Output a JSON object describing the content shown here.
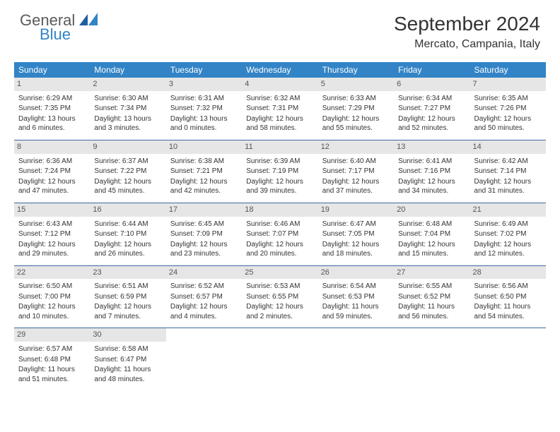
{
  "brand": {
    "part1": "General",
    "part2": "Blue"
  },
  "title": "September 2024",
  "location": "Mercato, Campania, Italy",
  "colors": {
    "header_bg": "#3284c6",
    "header_text": "#ffffff",
    "daynum_bg": "#e6e6e6",
    "daynum_text": "#555555",
    "cell_text": "#333333",
    "row_divider": "#3a6a9a",
    "background": "#ffffff"
  },
  "typography": {
    "title_fontsize": 28,
    "location_fontsize": 16,
    "header_fontsize": 12,
    "daynum_fontsize": 11,
    "cell_fontsize": 10
  },
  "weekdays": [
    "Sunday",
    "Monday",
    "Tuesday",
    "Wednesday",
    "Thursday",
    "Friday",
    "Saturday"
  ],
  "weeks": [
    [
      {
        "day": "1",
        "sunrise": "Sunrise: 6:29 AM",
        "sunset": "Sunset: 7:35 PM",
        "daylight": "Daylight: 13 hours and 6 minutes."
      },
      {
        "day": "2",
        "sunrise": "Sunrise: 6:30 AM",
        "sunset": "Sunset: 7:34 PM",
        "daylight": "Daylight: 13 hours and 3 minutes."
      },
      {
        "day": "3",
        "sunrise": "Sunrise: 6:31 AM",
        "sunset": "Sunset: 7:32 PM",
        "daylight": "Daylight: 13 hours and 0 minutes."
      },
      {
        "day": "4",
        "sunrise": "Sunrise: 6:32 AM",
        "sunset": "Sunset: 7:31 PM",
        "daylight": "Daylight: 12 hours and 58 minutes."
      },
      {
        "day": "5",
        "sunrise": "Sunrise: 6:33 AM",
        "sunset": "Sunset: 7:29 PM",
        "daylight": "Daylight: 12 hours and 55 minutes."
      },
      {
        "day": "6",
        "sunrise": "Sunrise: 6:34 AM",
        "sunset": "Sunset: 7:27 PM",
        "daylight": "Daylight: 12 hours and 52 minutes."
      },
      {
        "day": "7",
        "sunrise": "Sunrise: 6:35 AM",
        "sunset": "Sunset: 7:26 PM",
        "daylight": "Daylight: 12 hours and 50 minutes."
      }
    ],
    [
      {
        "day": "8",
        "sunrise": "Sunrise: 6:36 AM",
        "sunset": "Sunset: 7:24 PM",
        "daylight": "Daylight: 12 hours and 47 minutes."
      },
      {
        "day": "9",
        "sunrise": "Sunrise: 6:37 AM",
        "sunset": "Sunset: 7:22 PM",
        "daylight": "Daylight: 12 hours and 45 minutes."
      },
      {
        "day": "10",
        "sunrise": "Sunrise: 6:38 AM",
        "sunset": "Sunset: 7:21 PM",
        "daylight": "Daylight: 12 hours and 42 minutes."
      },
      {
        "day": "11",
        "sunrise": "Sunrise: 6:39 AM",
        "sunset": "Sunset: 7:19 PM",
        "daylight": "Daylight: 12 hours and 39 minutes."
      },
      {
        "day": "12",
        "sunrise": "Sunrise: 6:40 AM",
        "sunset": "Sunset: 7:17 PM",
        "daylight": "Daylight: 12 hours and 37 minutes."
      },
      {
        "day": "13",
        "sunrise": "Sunrise: 6:41 AM",
        "sunset": "Sunset: 7:16 PM",
        "daylight": "Daylight: 12 hours and 34 minutes."
      },
      {
        "day": "14",
        "sunrise": "Sunrise: 6:42 AM",
        "sunset": "Sunset: 7:14 PM",
        "daylight": "Daylight: 12 hours and 31 minutes."
      }
    ],
    [
      {
        "day": "15",
        "sunrise": "Sunrise: 6:43 AM",
        "sunset": "Sunset: 7:12 PM",
        "daylight": "Daylight: 12 hours and 29 minutes."
      },
      {
        "day": "16",
        "sunrise": "Sunrise: 6:44 AM",
        "sunset": "Sunset: 7:10 PM",
        "daylight": "Daylight: 12 hours and 26 minutes."
      },
      {
        "day": "17",
        "sunrise": "Sunrise: 6:45 AM",
        "sunset": "Sunset: 7:09 PM",
        "daylight": "Daylight: 12 hours and 23 minutes."
      },
      {
        "day": "18",
        "sunrise": "Sunrise: 6:46 AM",
        "sunset": "Sunset: 7:07 PM",
        "daylight": "Daylight: 12 hours and 20 minutes."
      },
      {
        "day": "19",
        "sunrise": "Sunrise: 6:47 AM",
        "sunset": "Sunset: 7:05 PM",
        "daylight": "Daylight: 12 hours and 18 minutes."
      },
      {
        "day": "20",
        "sunrise": "Sunrise: 6:48 AM",
        "sunset": "Sunset: 7:04 PM",
        "daylight": "Daylight: 12 hours and 15 minutes."
      },
      {
        "day": "21",
        "sunrise": "Sunrise: 6:49 AM",
        "sunset": "Sunset: 7:02 PM",
        "daylight": "Daylight: 12 hours and 12 minutes."
      }
    ],
    [
      {
        "day": "22",
        "sunrise": "Sunrise: 6:50 AM",
        "sunset": "Sunset: 7:00 PM",
        "daylight": "Daylight: 12 hours and 10 minutes."
      },
      {
        "day": "23",
        "sunrise": "Sunrise: 6:51 AM",
        "sunset": "Sunset: 6:59 PM",
        "daylight": "Daylight: 12 hours and 7 minutes."
      },
      {
        "day": "24",
        "sunrise": "Sunrise: 6:52 AM",
        "sunset": "Sunset: 6:57 PM",
        "daylight": "Daylight: 12 hours and 4 minutes."
      },
      {
        "day": "25",
        "sunrise": "Sunrise: 6:53 AM",
        "sunset": "Sunset: 6:55 PM",
        "daylight": "Daylight: 12 hours and 2 minutes."
      },
      {
        "day": "26",
        "sunrise": "Sunrise: 6:54 AM",
        "sunset": "Sunset: 6:53 PM",
        "daylight": "Daylight: 11 hours and 59 minutes."
      },
      {
        "day": "27",
        "sunrise": "Sunrise: 6:55 AM",
        "sunset": "Sunset: 6:52 PM",
        "daylight": "Daylight: 11 hours and 56 minutes."
      },
      {
        "day": "28",
        "sunrise": "Sunrise: 6:56 AM",
        "sunset": "Sunset: 6:50 PM",
        "daylight": "Daylight: 11 hours and 54 minutes."
      }
    ],
    [
      {
        "day": "29",
        "sunrise": "Sunrise: 6:57 AM",
        "sunset": "Sunset: 6:48 PM",
        "daylight": "Daylight: 11 hours and 51 minutes."
      },
      {
        "day": "30",
        "sunrise": "Sunrise: 6:58 AM",
        "sunset": "Sunset: 6:47 PM",
        "daylight": "Daylight: 11 hours and 48 minutes."
      },
      null,
      null,
      null,
      null,
      null
    ]
  ]
}
